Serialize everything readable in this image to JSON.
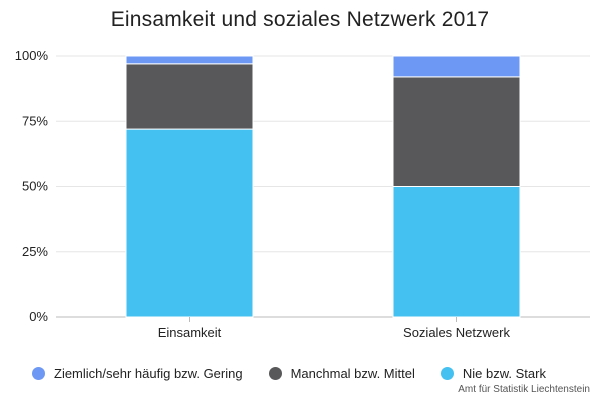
{
  "chart_data": {
    "type": "bar",
    "stacked": true,
    "normalized": true,
    "title": "Einsamkeit und soziales Netzwerk 2017",
    "categories": [
      "Einsamkeit",
      "Soziales Netzwerk"
    ],
    "series": [
      {
        "name": "Nie bzw. Stark",
        "color": "#44c1f0",
        "values": [
          72,
          50
        ]
      },
      {
        "name": "Manchmal bzw. Mittel",
        "color": "#58585a",
        "values": [
          25,
          42
        ]
      },
      {
        "name": "Ziemlich/sehr häufig bzw. Gering",
        "color": "#6d98f4",
        "values": [
          3,
          8
        ]
      }
    ],
    "yticks": [
      "0%",
      "25%",
      "50%",
      "75%",
      "100%"
    ],
    "ylim": [
      0,
      100
    ],
    "xlabel": "",
    "ylabel": "",
    "legend_position": "bottom",
    "legend_order": [
      "Ziemlich/sehr häufig bzw. Gering",
      "Manchmal bzw. Mittel",
      "Nie bzw. Stark"
    ],
    "source": "Amt für Statistik Liechtenstein"
  }
}
